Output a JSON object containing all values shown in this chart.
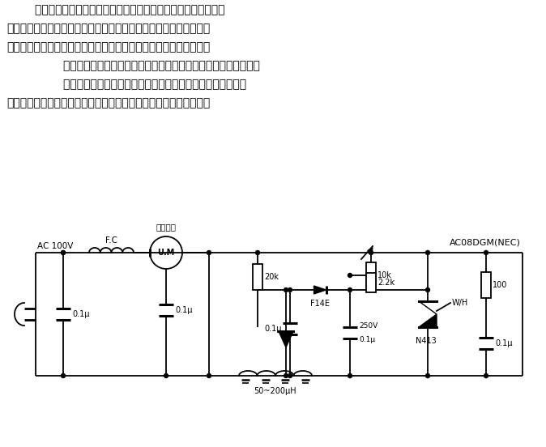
{
  "bg_color": "#ffffff",
  "text_color": "#000000",
  "paragraph": [
    "交、直流两用电机，即励磁线圈和转子线圈串联，它们流有同一",
    "电流，这种电机接直流电源时能工作，接交流电源时也能工作，其结",
    "构决定了电磁转矩的方向是一定的。一般用于电机转向固定的情况。",
    "若想改变电机转向，应给励磁线圈、转子线圈分别供电。电路如图",
    "所示。电路使用元件少、简单便宜，但也存在因导通电压高而",
    "产生的控制特性滞后现象，为达到使用目的，设置了消除滞后电路。"
  ],
  "indents": [
    "        ",
    "",
    "",
    "                ",
    "                ",
    ""
  ],
  "labels": {
    "ac_voltage": "AC 100V",
    "fc": "F.C",
    "motor_label": "单磁电机",
    "um": "U.M",
    "c1": "0.1μ",
    "c2": "0.1μ",
    "r1": "20k",
    "c3": "0.1μ",
    "d1": "F14E",
    "r2": "10k",
    "r3": "2.2k",
    "triac": "N413",
    "r4": "100",
    "c4": "0.1μ",
    "cap_v": "250V",
    "cap_c": "0.1μ",
    "inductor": "50~200μH",
    "ic_label": "AC08DGM(NEC)",
    "wh": "W/H"
  }
}
